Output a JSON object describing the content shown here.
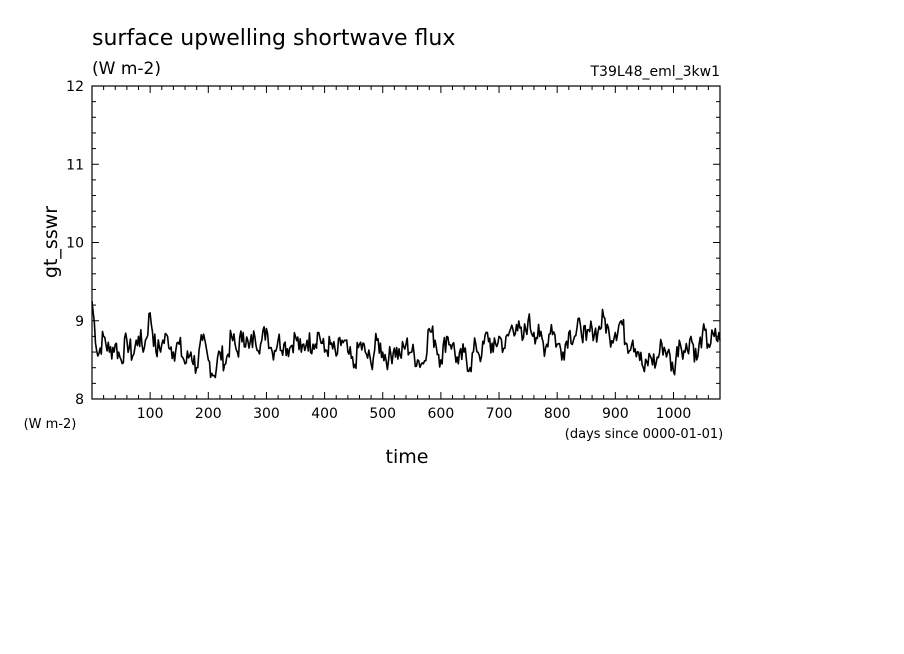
{
  "chart_data": {
    "type": "line",
    "title": "surface upwelling shortwave flux",
    "subtitle": "(W m-2)",
    "run_label": "T39L48_eml_3kw1",
    "xlabel": "time",
    "x_units": "(days since 0000-01-01)",
    "ylabel": "gt_sswr",
    "y_units": "(W m-2)",
    "xlim": [
      0,
      1080
    ],
    "ylim": [
      8,
      12
    ],
    "x_ticks": [
      100,
      200,
      300,
      400,
      500,
      600,
      700,
      800,
      900,
      1000
    ],
    "y_ticks": [
      8,
      9,
      10,
      11,
      12
    ],
    "grid": false,
    "line_color": "#000000",
    "series": [
      {
        "x": [
          0,
          10,
          20,
          30,
          40,
          50,
          60,
          70,
          80,
          90,
          100,
          110,
          120,
          130,
          140,
          150,
          160,
          170,
          180,
          190,
          200,
          210,
          220,
          230,
          240,
          250,
          260,
          270,
          280,
          290,
          300,
          310,
          320,
          330,
          340,
          350,
          360,
          370,
          380,
          390,
          400,
          410,
          420,
          430,
          440,
          450,
          460,
          470,
          480,
          490,
          500,
          510,
          520,
          530,
          540,
          550,
          560,
          570,
          580,
          590,
          600,
          610,
          620,
          630,
          640,
          650,
          660,
          670,
          680,
          690,
          700,
          710,
          720,
          730,
          740,
          750,
          760,
          770,
          780,
          790,
          800,
          810,
          820,
          830,
          840,
          850,
          860,
          870,
          880,
          890,
          900,
          910,
          920,
          930,
          940,
          950,
          960,
          970,
          980,
          990,
          1000,
          1010,
          1020,
          1030,
          1040,
          1050,
          1060,
          1070,
          1080
        ],
        "values": [
          9.25,
          8.55,
          8.8,
          8.6,
          8.7,
          8.5,
          8.75,
          8.55,
          8.8,
          8.65,
          9.1,
          8.6,
          8.7,
          8.8,
          8.6,
          8.7,
          8.45,
          8.6,
          8.4,
          8.75,
          8.5,
          8.3,
          8.6,
          8.45,
          8.8,
          8.6,
          8.85,
          8.65,
          8.8,
          8.7,
          8.9,
          8.6,
          8.75,
          8.7,
          8.65,
          8.8,
          8.6,
          8.75,
          8.7,
          8.85,
          8.6,
          8.7,
          8.55,
          8.75,
          8.6,
          8.4,
          8.7,
          8.6,
          8.45,
          8.75,
          8.6,
          8.5,
          8.65,
          8.55,
          8.7,
          8.6,
          8.5,
          8.45,
          8.9,
          8.75,
          8.5,
          8.8,
          8.7,
          8.45,
          8.6,
          8.4,
          8.7,
          8.55,
          8.85,
          8.6,
          8.8,
          8.65,
          8.9,
          8.95,
          8.75,
          9.0,
          8.85,
          8.8,
          8.65,
          8.95,
          8.7,
          8.6,
          8.85,
          8.8,
          8.95,
          8.75,
          8.9,
          8.85,
          9.05,
          8.8,
          8.85,
          9.0,
          8.7,
          8.75,
          8.6,
          8.35,
          8.55,
          8.45,
          8.7,
          8.6,
          8.35,
          8.75,
          8.6,
          8.8,
          8.5,
          8.85,
          8.7,
          8.8,
          8.75
        ]
      }
    ]
  }
}
